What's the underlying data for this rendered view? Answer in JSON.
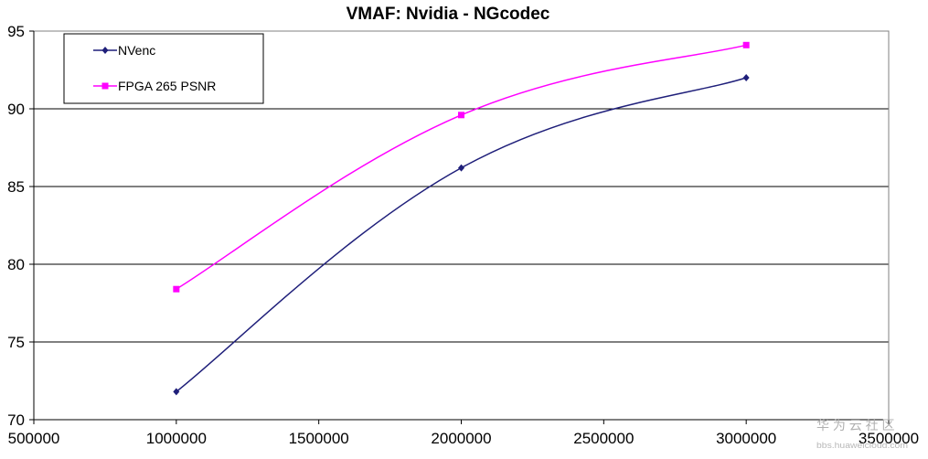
{
  "chart_data": {
    "type": "line",
    "title": "VMAF: Nvidia - NGcodec",
    "xlabel": "",
    "ylabel": "",
    "xlim": [
      500000,
      3500000
    ],
    "ylim": [
      70,
      95
    ],
    "x_ticks": [
      500000,
      1000000,
      1500000,
      2000000,
      2500000,
      3000000,
      3500000
    ],
    "x_tick_labels": [
      "500000",
      "1000000",
      "1500000",
      "2000000",
      "2500000",
      "3000000",
      "3500000"
    ],
    "y_ticks": [
      70,
      75,
      80,
      85,
      90,
      95
    ],
    "y_tick_labels": [
      "70",
      "75",
      "80",
      "85",
      "90",
      "95"
    ],
    "grid": "horizontal",
    "legend_position": "top-left",
    "series": [
      {
        "name": "NVenc",
        "color": "#1f1f7a",
        "marker": "diamond",
        "x": [
          1000000,
          2000000,
          3000000
        ],
        "values": [
          71.8,
          86.2,
          92.0
        ]
      },
      {
        "name": "FPGA 265 PSNR",
        "color": "#ff00ff",
        "marker": "square",
        "x": [
          1000000,
          2000000,
          3000000
        ],
        "values": [
          78.4,
          89.6,
          94.1
        ]
      }
    ]
  },
  "watermark": {
    "text": "华 为 云 社 区",
    "subtext": "bbs.huaweicloud.com"
  }
}
